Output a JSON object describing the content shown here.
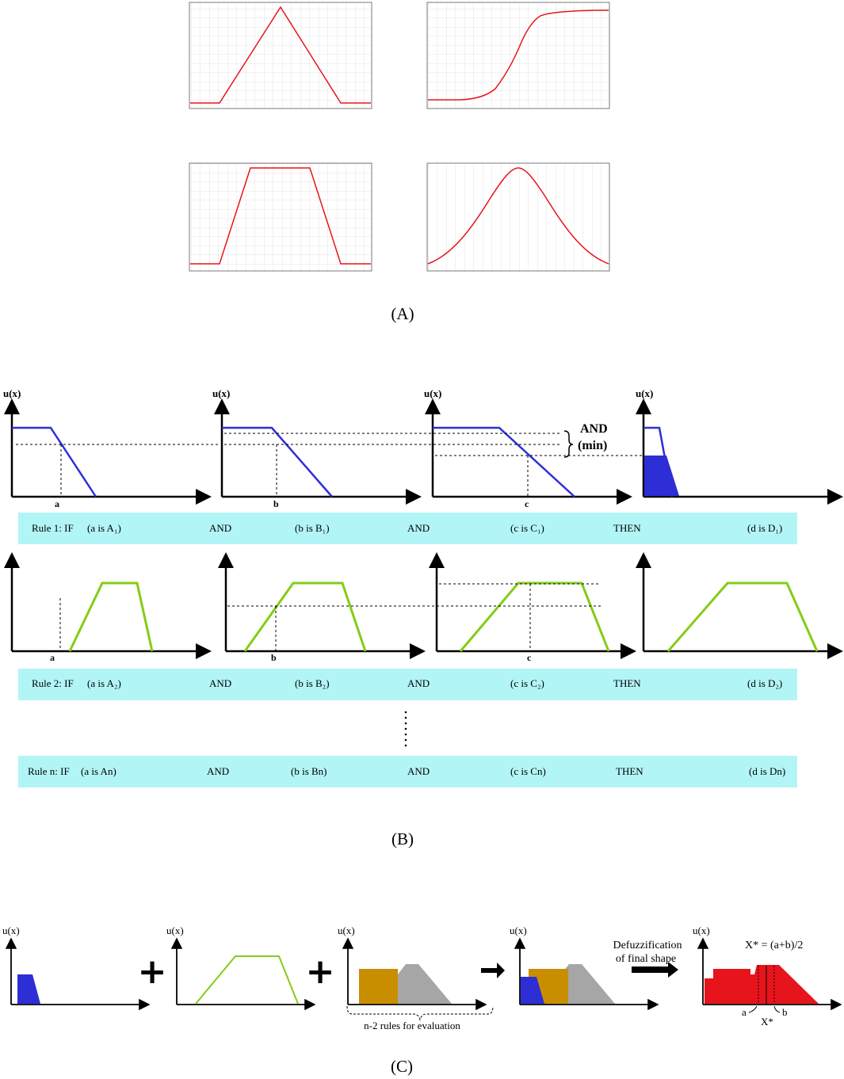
{
  "panel_labels": {
    "a": "(A)",
    "b": "(B)",
    "c": "(C)"
  },
  "axis_label": "u(x)",
  "part_b": {
    "axis_marks": {
      "a": "a",
      "b": "b",
      "c": "c"
    },
    "and_min": {
      "line1": "AND",
      "line2": "(min)"
    },
    "rules": [
      {
        "prefix": "Rule 1: IF",
        "a": "(a is A₁)",
        "and1": "AND",
        "b": "(b is B₁)",
        "and2": "AND",
        "c": "(c is C₁)",
        "then": "THEN",
        "d": "(d is D₁)"
      },
      {
        "prefix": "Rule 2: IF",
        "a": "(a is A₂)",
        "and1": "AND",
        "b": "(b is B₂)",
        "and2": "AND",
        "c": "(c is C₂)",
        "then": "THEN",
        "d": "(d is D₂)"
      },
      {
        "prefix": "Rule n: IF",
        "a": "(a is An)",
        "and1": "AND",
        "b": "(b is Bn)",
        "and2": "AND",
        "c": "(c is Cn)",
        "then": "THEN",
        "d": "(d is Dn)"
      }
    ],
    "ellipsis": "⋮"
  },
  "part_c": {
    "plus": "+",
    "brace_label": "n-2 rules for evaluation",
    "defuzz_line1": "Defuzzification",
    "defuzz_line2": "of final shape",
    "formula": "X* = (a+b)/2",
    "xstar": "X*",
    "mark_a": "a",
    "mark_b": "b"
  },
  "colors": {
    "red": "#e8141c",
    "blue": "#2e2ed6",
    "green": "#84cc16",
    "cyan": "#b2f5f7",
    "orange": "#c98e00",
    "gray": "#a6a6a6"
  }
}
